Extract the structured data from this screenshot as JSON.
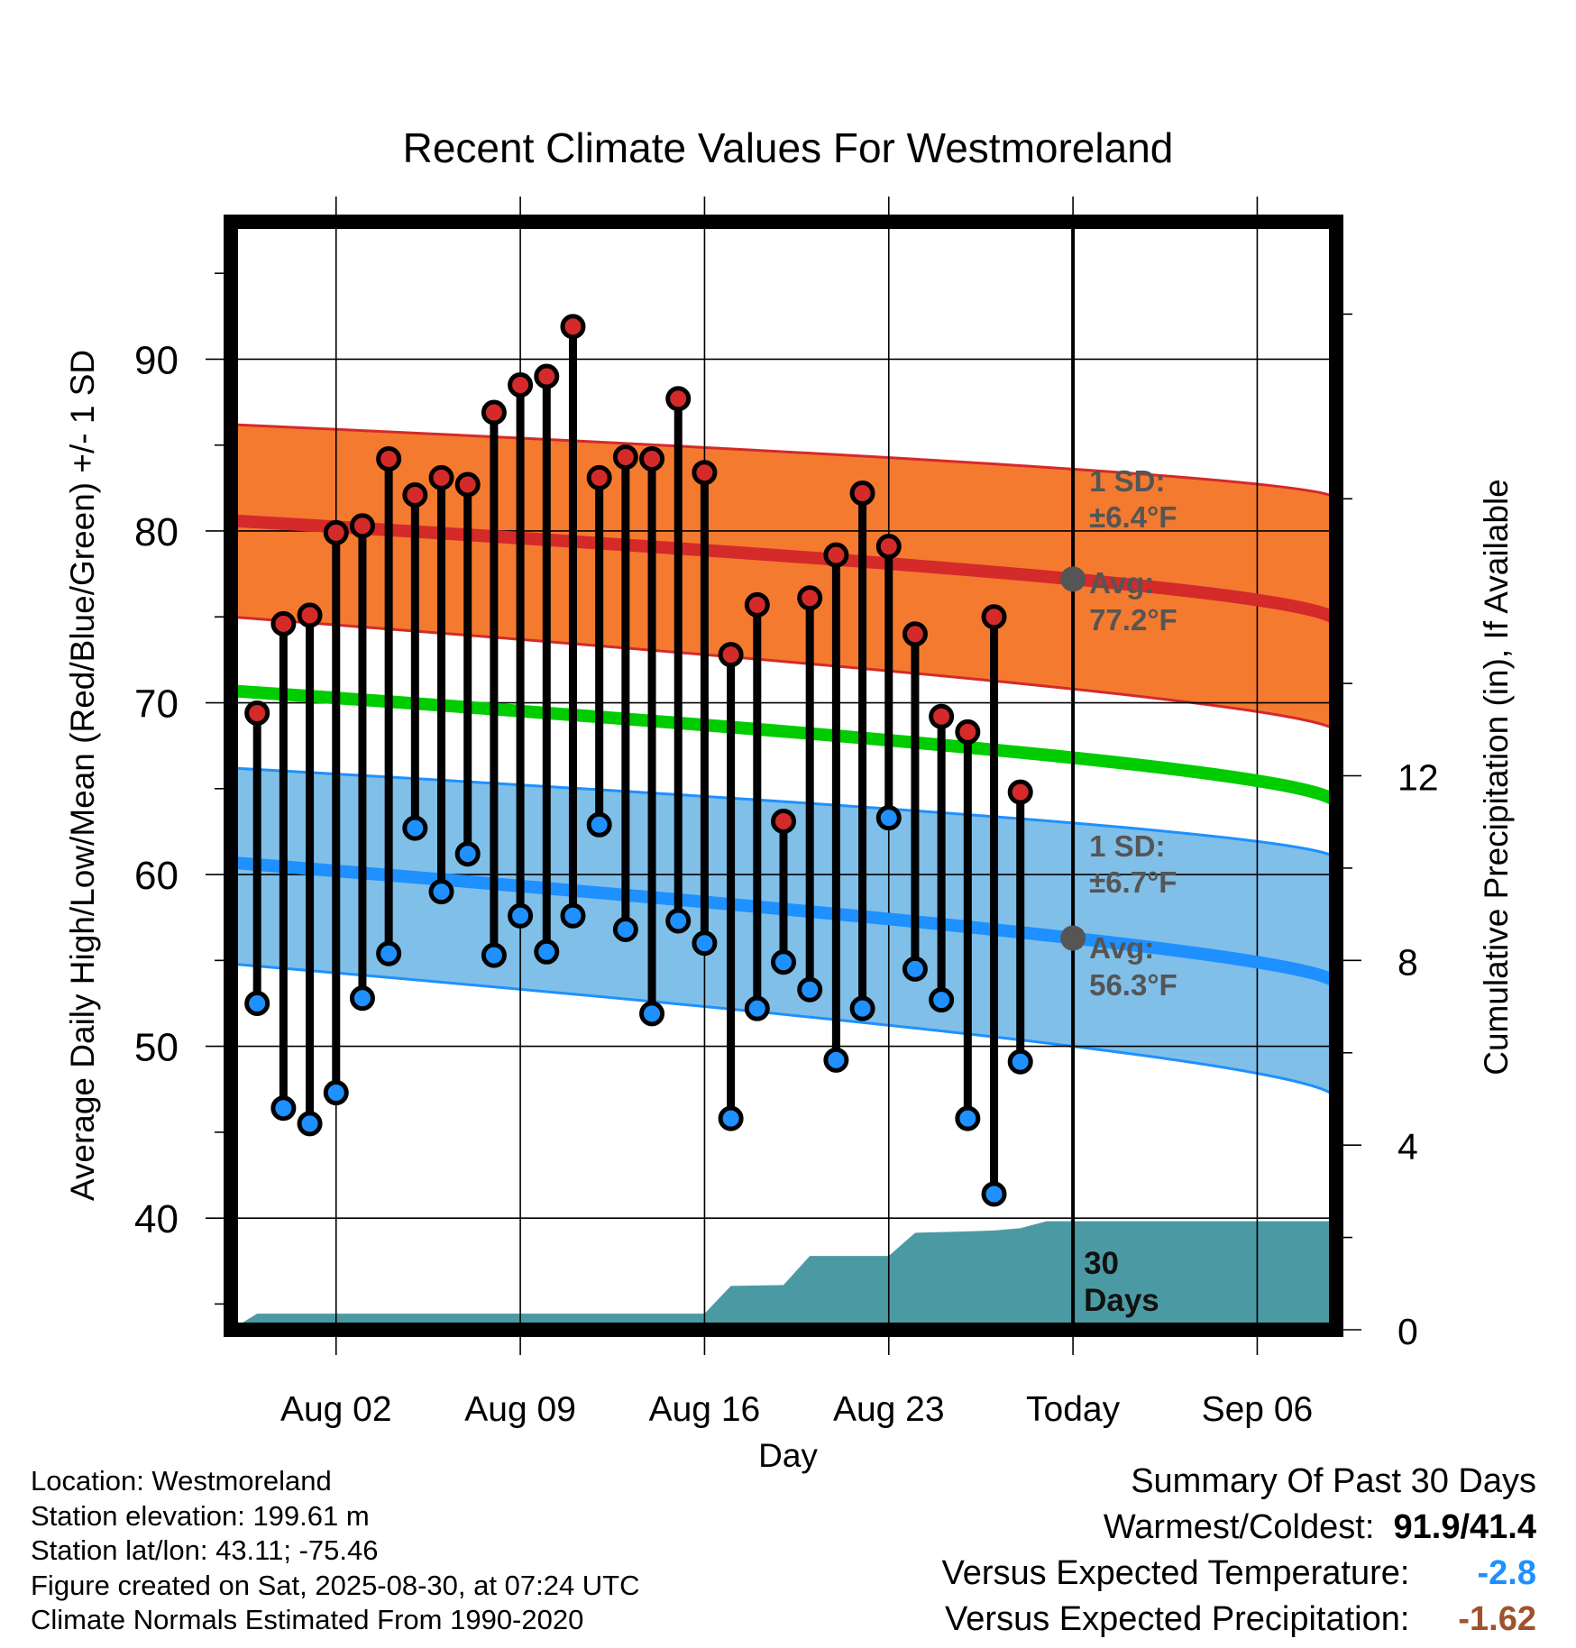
{
  "chart_data": {
    "type": "line",
    "title": "Recent Climate Values For Westmoreland",
    "xlabel": "Day",
    "ylabel": "Average Daily High/Low/Mean (Red/Blue/Green) +/- 1 SD",
    "y2label": "Cumulative Precipitation (in), If Available",
    "x_tick_labels": [
      "Aug 02",
      "Aug 09",
      "Aug 16",
      "Aug 23",
      "Today",
      "Sep 06"
    ],
    "y_ticks": [
      40,
      50,
      60,
      70,
      80,
      90
    ],
    "y2_ticks": [
      0,
      4,
      8,
      12
    ],
    "ylim": [
      33.5,
      98
    ],
    "y2lim": [
      0,
      24
    ],
    "xlim": [
      "Jul 29",
      "Sep 09"
    ],
    "grid": true,
    "today": "Aug 30",
    "dates": [
      "Jul 30",
      "Jul 31",
      "Aug 01",
      "Aug 02",
      "Aug 03",
      "Aug 04",
      "Aug 05",
      "Aug 06",
      "Aug 07",
      "Aug 08",
      "Aug 09",
      "Aug 10",
      "Aug 11",
      "Aug 12",
      "Aug 13",
      "Aug 14",
      "Aug 15",
      "Aug 16",
      "Aug 17",
      "Aug 18",
      "Aug 19",
      "Aug 20",
      "Aug 21",
      "Aug 22",
      "Aug 23",
      "Aug 24",
      "Aug 25",
      "Aug 26",
      "Aug 27",
      "Aug 28",
      "Aug 29"
    ],
    "daily_high": [
      69.4,
      74.6,
      75.1,
      79.9,
      80.3,
      84.2,
      82.1,
      83.1,
      82.7,
      86.9,
      88.5,
      89.0,
      91.9,
      83.1,
      84.3,
      84.2,
      87.7,
      83.4,
      72.8,
      75.7,
      63.1,
      76.1,
      78.6,
      82.2,
      79.1,
      74.0,
      69.2,
      68.3,
      75.0,
      64.8,
      null
    ],
    "daily_low": [
      52.5,
      46.4,
      45.5,
      47.3,
      52.8,
      55.4,
      62.7,
      59.0,
      61.2,
      55.3,
      57.6,
      55.5,
      57.6,
      62.9,
      56.8,
      51.9,
      57.3,
      56.0,
      45.8,
      52.2,
      54.9,
      53.3,
      49.2,
      52.2,
      63.3,
      54.5,
      52.7,
      45.8,
      41.4,
      49.1,
      null
    ],
    "normals": {
      "dates": [
        "Jul 29",
        "Aug 30",
        "Sep 09"
      ],
      "avg_high": [
        80.6,
        77.2,
        74.6
      ],
      "high_upper": [
        86.2,
        83.6,
        81.8
      ],
      "high_lower": [
        75.0,
        70.8,
        68.2
      ],
      "avg_mean": [
        70.7,
        66.8,
        64.0
      ],
      "avg_low": [
        60.7,
        56.3,
        53.5
      ],
      "low_upper": [
        66.2,
        63.0,
        60.8
      ],
      "low_lower": [
        54.8,
        50.0,
        46.8
      ]
    },
    "cumulative_precip": {
      "dates": [
        "Jul 29",
        "Jul 30",
        "Aug 15",
        "Aug 16",
        "Aug 17",
        "Aug 19",
        "Aug 20",
        "Aug 23",
        "Aug 24",
        "Aug 26",
        "Aug 27",
        "Aug 28",
        "Aug 29",
        "Aug 30",
        "Sep 09"
      ],
      "values": [
        0.0,
        0.35,
        0.35,
        0.35,
        0.95,
        0.97,
        1.6,
        1.6,
        2.1,
        2.13,
        2.15,
        2.2,
        2.35,
        2.35,
        2.35
      ]
    },
    "annotations": {
      "high_sd": "1 SD:",
      "high_sd_val": "±6.4°F",
      "high_avg": "Avg:",
      "high_avg_val": "77.2°F",
      "low_sd": "1 SD:",
      "low_sd_val": "±6.7°F",
      "low_avg": "Avg:",
      "low_avg_val": "56.3°F",
      "days": "30",
      "days2": "Days"
    },
    "colors": {
      "high_band": "#f47a30",
      "high_line": "#d42a2a",
      "mean_line": "#00cc00",
      "low_band": "#80bfe8",
      "low_line": "#1e90ff",
      "precip": "#4b9aa3",
      "high_dot": "#d42a2a",
      "low_dot": "#1e90ff",
      "today_dot": "#555555"
    }
  },
  "footer": {
    "location": "Location: Westmoreland",
    "elevation": "Station elevation: 199.61 m",
    "latlon": "Station lat/lon: 43.11; -75.46",
    "created": "Figure created on Sat, 2025-08-30, at 07:24 UTC",
    "normals": "Climate Normals Estimated From 1990-2020"
  },
  "summary": {
    "title": "Summary Of Past 30 Days",
    "warm_cold_label": "Warmest/Coldest:",
    "warm_cold_value": "91.9/41.4",
    "temp_label": "Versus Expected Temperature:",
    "temp_value": "-2.8",
    "precip_label": "Versus Expected Precipitation:",
    "precip_value": "-1.62"
  }
}
